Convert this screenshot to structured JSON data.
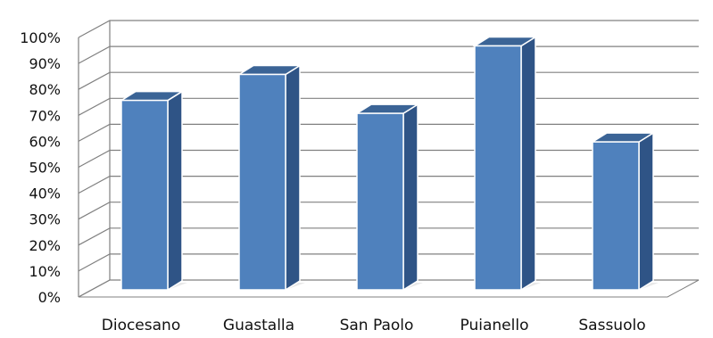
{
  "chart_data": {
    "type": "bar",
    "style": "3d-column",
    "categories": [
      "Diocesano",
      "Guastalla",
      "San Paolo",
      "Puianello",
      "Sassuolo"
    ],
    "values": [
      73,
      83,
      68,
      94,
      57
    ],
    "unit": "%",
    "ylim": [
      0,
      100
    ],
    "yticks": [
      "0%",
      "10%",
      "20%",
      "30%",
      "40%",
      "50%",
      "60%",
      "70%",
      "80%",
      "90%",
      "100%"
    ],
    "grid": true,
    "legend": "none",
    "title": "",
    "xlabel": "",
    "ylabel": "",
    "colors": {
      "bar_front": "#4f81bd",
      "bar_side": "#2f5486",
      "bar_top": "#3b6496",
      "gridline": "#808080"
    }
  }
}
